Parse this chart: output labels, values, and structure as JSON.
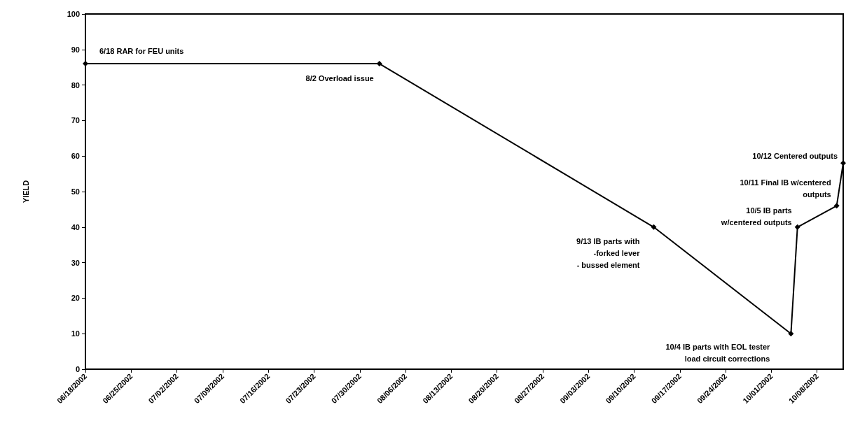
{
  "chart_data": {
    "type": "line",
    "ylabel": "YIELD",
    "x": [
      "2002-06-18",
      "2002-08-02",
      "2002-09-13",
      "2002-10-04",
      "2002-10-05",
      "2002-10-11",
      "2002-10-12"
    ],
    "series": [
      {
        "color": "#000000",
        "values": [
          86,
          86,
          40,
          10,
          40,
          46,
          58
        ]
      }
    ],
    "xlim": [
      "2002-06-18",
      "2002-10-12"
    ],
    "xticks": [
      {
        "value": "2002-06-18",
        "label": "06/18/2002"
      },
      {
        "value": "2002-06-25",
        "label": "06/25/2002"
      },
      {
        "value": "2002-07-02",
        "label": "07/02/2002"
      },
      {
        "value": "2002-07-09",
        "label": "07/09/2002"
      },
      {
        "value": "2002-07-16",
        "label": "07/16/2002"
      },
      {
        "value": "2002-07-23",
        "label": "07/23/2002"
      },
      {
        "value": "2002-07-30",
        "label": "07/30/2002"
      },
      {
        "value": "2002-08-06",
        "label": "08/06/2002"
      },
      {
        "value": "2002-08-13",
        "label": "08/13/2002"
      },
      {
        "value": "2002-08-20",
        "label": "08/20/2002"
      },
      {
        "value": "2002-08-27",
        "label": "08/27/2002"
      },
      {
        "value": "2002-09-03",
        "label": "09/03/2002"
      },
      {
        "value": "2002-09-10",
        "label": "09/10/2002"
      },
      {
        "value": "2002-09-17",
        "label": "09/17/2002"
      },
      {
        "value": "2002-09-24",
        "label": "09/24/2002"
      },
      {
        "value": "2002-10-01",
        "label": "10/01/2002"
      },
      {
        "value": "2002-10-08",
        "label": "10/08/2002"
      }
    ],
    "ylim": [
      0,
      100
    ],
    "yticks": [
      0,
      10,
      20,
      30,
      40,
      50,
      60,
      70,
      80,
      90,
      100
    ],
    "grid": false,
    "marker": "diamond",
    "line_style": "solid",
    "annotations": [
      {
        "text": "6/18 RAR for FEU units",
        "x": "2002-06-18",
        "y": 86
      },
      {
        "text": "8/2 Overload issue",
        "x": "2002-08-02",
        "y": 86
      },
      {
        "text": "9/13 IB parts with\n-forked lever\n- bussed element",
        "x": "2002-09-13",
        "y": 40
      },
      {
        "text": "10/4 IB parts with EOL tester\nload circuit corrections",
        "x": "2002-10-04",
        "y": 10
      },
      {
        "text": "10/5 IB parts\nw/centered outputs",
        "x": "2002-10-05",
        "y": 40
      },
      {
        "text": "10/11 Final IB w/centered\noutputs",
        "x": "2002-10-11",
        "y": 46
      },
      {
        "text": "10/12 Centered outputs",
        "x": "2002-10-12",
        "y": 58
      }
    ]
  }
}
